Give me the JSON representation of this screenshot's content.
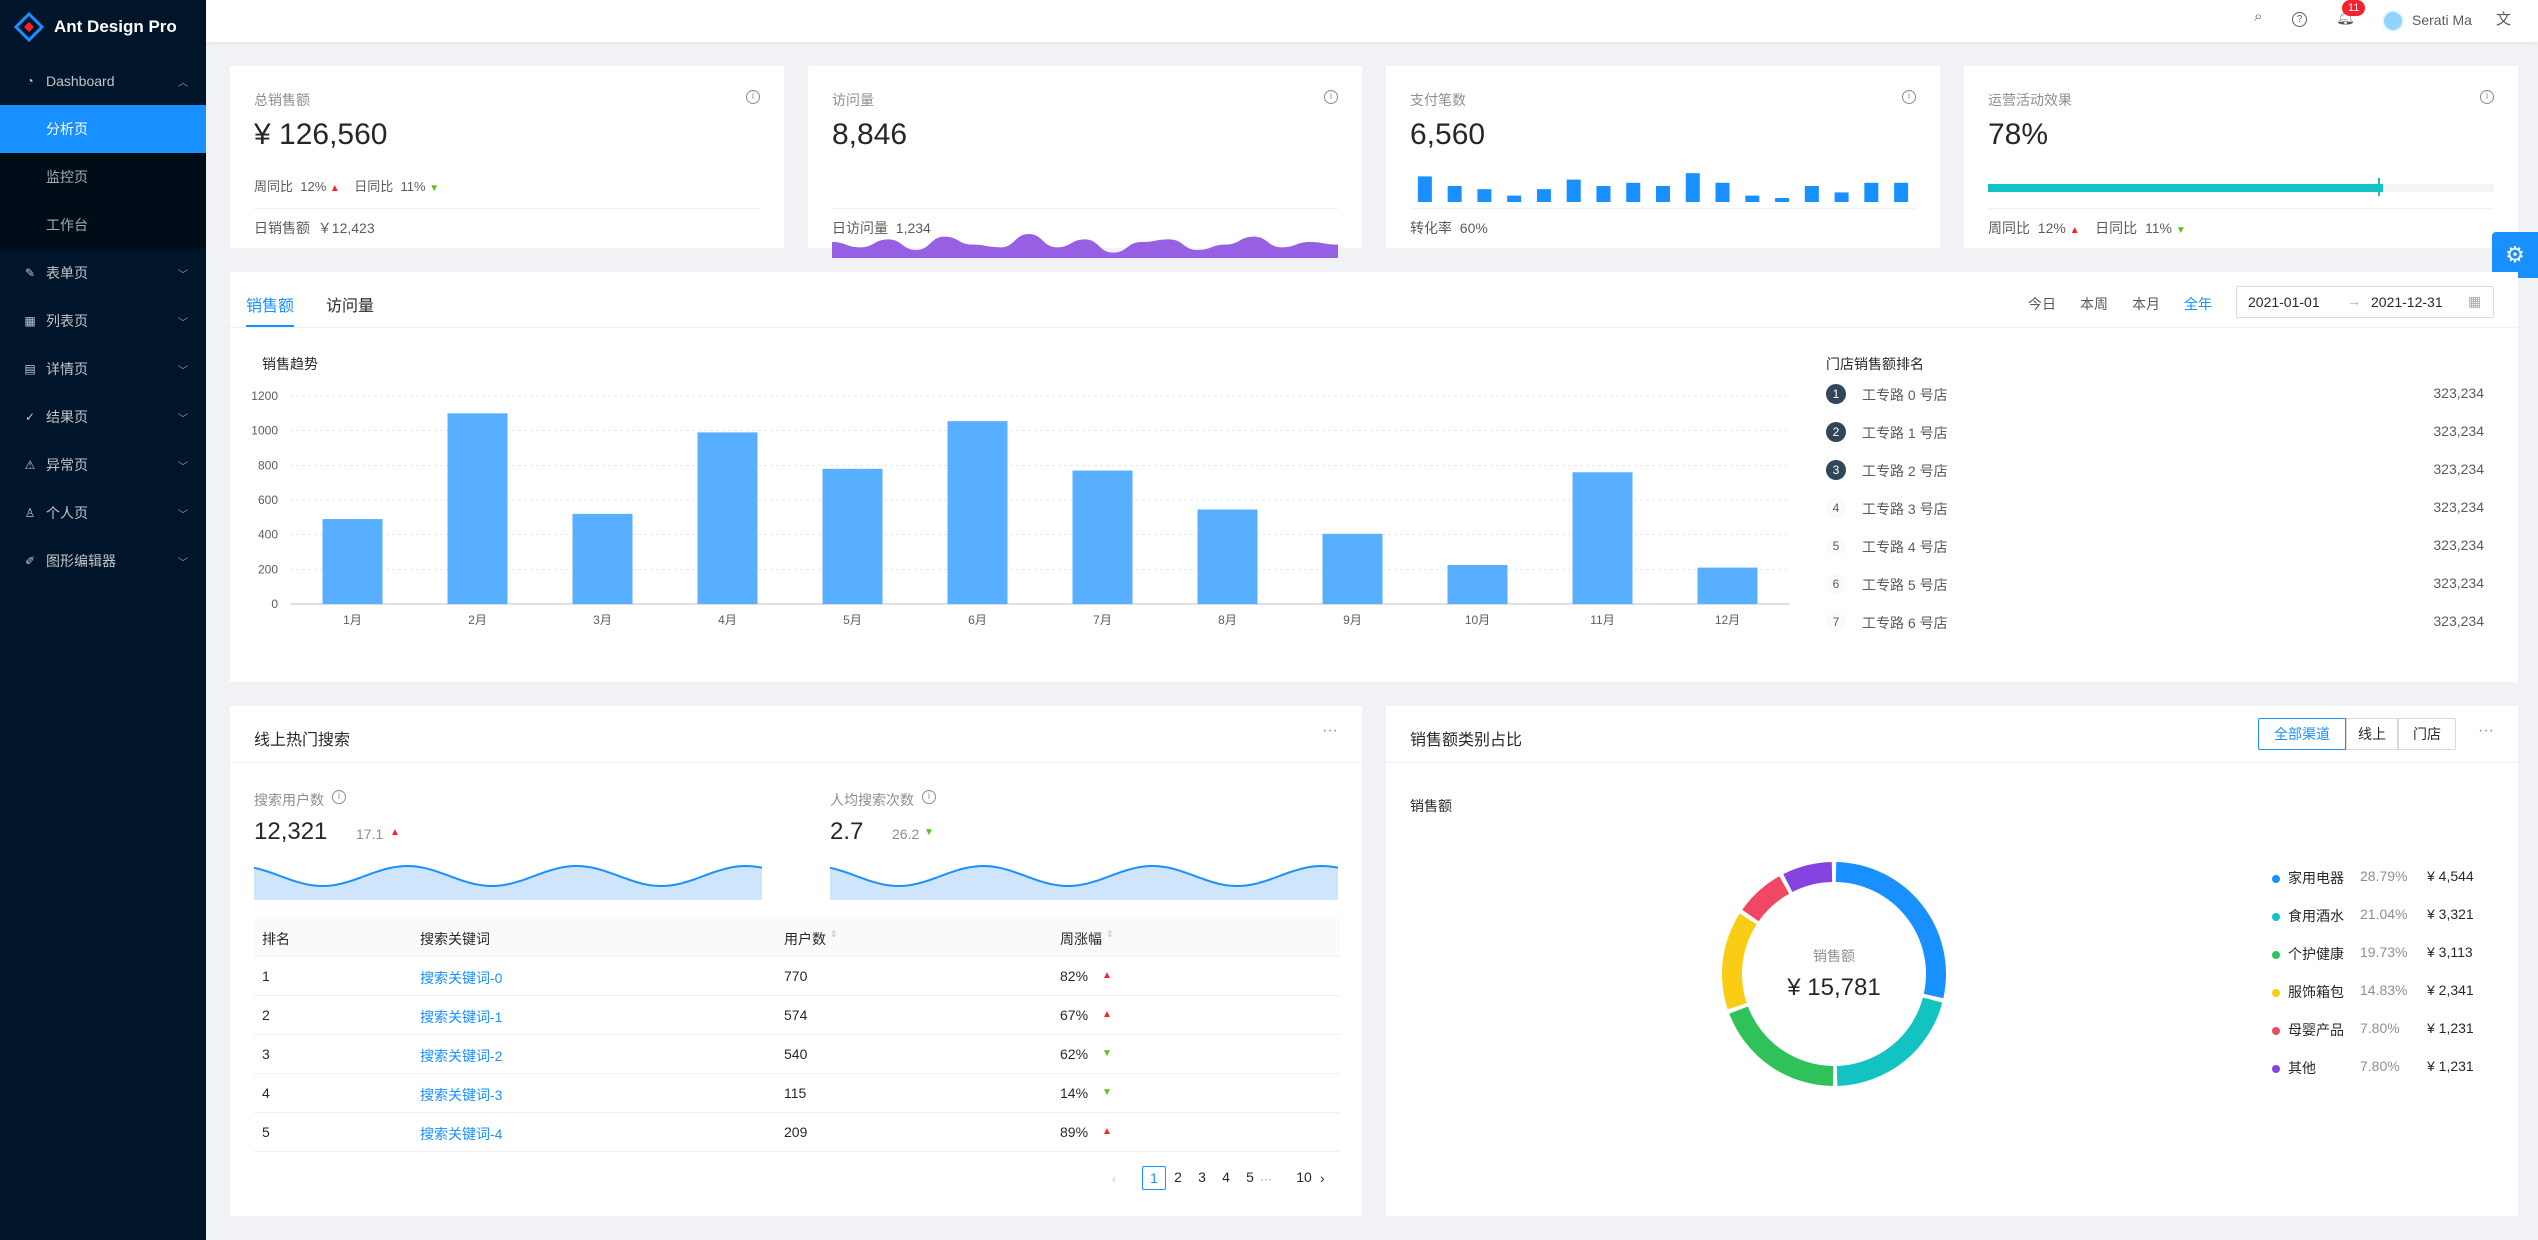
{
  "app": {
    "title": "Ant Design Pro"
  },
  "sidebar": {
    "menu": [
      {
        "label": "Dashboard",
        "icon": "dashboard-icon"
      },
      {
        "label": "表单页",
        "icon": "form-icon"
      },
      {
        "label": "列表页",
        "icon": "table-icon"
      },
      {
        "label": "详情页",
        "icon": "profile-icon"
      },
      {
        "label": "结果页",
        "icon": "check-circle-icon"
      },
      {
        "label": "异常页",
        "icon": "warning-icon"
      },
      {
        "label": "个人页",
        "icon": "user-icon"
      },
      {
        "label": "图形编辑器",
        "icon": "highlight-icon"
      }
    ],
    "sub": [
      "分析页",
      "监控页",
      "工作台"
    ]
  },
  "header": {
    "user": "Serati Ma",
    "notification_count": "11"
  },
  "stats": {
    "sales": {
      "label": "总销售额",
      "value": "¥ 126,560",
      "wow_label": "周同比",
      "wow": "12%",
      "dod_label": "日同比",
      "dod": "11%",
      "foot_label": "日销售额",
      "foot_value": "￥12,423"
    },
    "visits": {
      "label": "访问量",
      "value": "8,846",
      "foot_label": "日访问量",
      "foot_value": "1,234"
    },
    "payments": {
      "label": "支付笔数",
      "value": "6,560",
      "foot_label": "转化率",
      "foot_value": "60%"
    },
    "ops": {
      "label": "运营活动效果",
      "value": "78%",
      "progress": 0.78,
      "wow_label": "周同比",
      "wow": "12%",
      "dod_label": "日同比",
      "dod": "11%"
    }
  },
  "sales_card": {
    "tabs": [
      "销售额",
      "访问量"
    ],
    "ranges": [
      "今日",
      "本周",
      "本月",
      "全年"
    ],
    "date_start": "2021-01-01",
    "date_end": "2021-12-31",
    "chart_title": "销售趋势",
    "rank_title": "门店销售额排名",
    "ranking": [
      {
        "n": "1",
        "name": "工专路 0 号店",
        "val": "323,234"
      },
      {
        "n": "2",
        "name": "工专路 1 号店",
        "val": "323,234"
      },
      {
        "n": "3",
        "name": "工专路 2 号店",
        "val": "323,234"
      },
      {
        "n": "4",
        "name": "工专路 3 号店",
        "val": "323,234"
      },
      {
        "n": "5",
        "name": "工专路 4 号店",
        "val": "323,234"
      },
      {
        "n": "6",
        "name": "工专路 5 号店",
        "val": "323,234"
      },
      {
        "n": "7",
        "name": "工专路 6 号店",
        "val": "323,234"
      }
    ]
  },
  "search_card": {
    "title": "线上热门搜索",
    "users_label": "搜索用户数",
    "users_value": "12,321",
    "users_change": "17.1",
    "per_label": "人均搜索次数",
    "per_value": "2.7",
    "per_change": "26.2",
    "columns": [
      "排名",
      "搜索关键词",
      "用户数",
      "周涨幅"
    ],
    "rows": [
      {
        "rank": "1",
        "kw": "搜索关键词-0",
        "users": "770",
        "range": "82%",
        "trend": "up"
      },
      {
        "rank": "2",
        "kw": "搜索关键词-1",
        "users": "574",
        "range": "67%",
        "trend": "up"
      },
      {
        "rank": "3",
        "kw": "搜索关键词-2",
        "users": "540",
        "range": "62%",
        "trend": "down"
      },
      {
        "rank": "4",
        "kw": "搜索关键词-3",
        "users": "115",
        "range": "14%",
        "trend": "down"
      },
      {
        "rank": "5",
        "kw": "搜索关键词-4",
        "users": "209",
        "range": "89%",
        "trend": "up"
      }
    ],
    "pages": [
      "1",
      "2",
      "3",
      "4",
      "5",
      "10"
    ]
  },
  "category_card": {
    "title": "销售额类别占比",
    "segments": [
      "全部渠道",
      "线上",
      "门店"
    ],
    "sub_title": "销售额",
    "center_label": "销售额",
    "center_value": "¥ 15,781",
    "legend": [
      {
        "name": "家用电器",
        "pct": "28.79%",
        "amt": "¥ 4,544",
        "color": "#1890ff"
      },
      {
        "name": "食用酒水",
        "pct": "21.04%",
        "amt": "¥ 3,321",
        "color": "#13c2c2"
      },
      {
        "name": "个护健康",
        "pct": "19.73%",
        "amt": "¥ 3,113",
        "color": "#2fc25b"
      },
      {
        "name": "服饰箱包",
        "pct": "14.83%",
        "amt": "¥ 2,341",
        "color": "#facc14"
      },
      {
        "name": "母婴产品",
        "pct": "7.80%",
        "amt": "¥ 1,231",
        "color": "#f04864"
      },
      {
        "name": "其他",
        "pct": "7.80%",
        "amt": "¥ 1,231",
        "color": "#8543e0"
      }
    ]
  },
  "chart_data": [
    {
      "type": "bar",
      "title": "销售趋势",
      "categories": [
        "1月",
        "2月",
        "3月",
        "4月",
        "5月",
        "6月",
        "7月",
        "8月",
        "9月",
        "10月",
        "11月",
        "12月"
      ],
      "values": [
        490,
        1100,
        520,
        990,
        780,
        1055,
        770,
        545,
        405,
        225,
        760,
        210
      ],
      "ylim": [
        0,
        1200
      ],
      "yticks": [
        0,
        200,
        400,
        600,
        800,
        1000,
        1200
      ],
      "grid": true
    },
    {
      "type": "bar",
      "values": [
        8,
        5,
        4,
        2,
        4,
        7,
        5,
        6,
        5,
        9,
        6,
        2,
        1,
        5,
        3,
        6,
        6
      ]
    },
    {
      "type": "area",
      "values": [
        6,
        4,
        7,
        3,
        8,
        5,
        4,
        9,
        4,
        7,
        2,
        6,
        7,
        3,
        5,
        8,
        4,
        6,
        5
      ]
    },
    {
      "type": "pie",
      "values": [
        28.79,
        21.04,
        19.73,
        14.83,
        7.8,
        7.8
      ]
    }
  ]
}
